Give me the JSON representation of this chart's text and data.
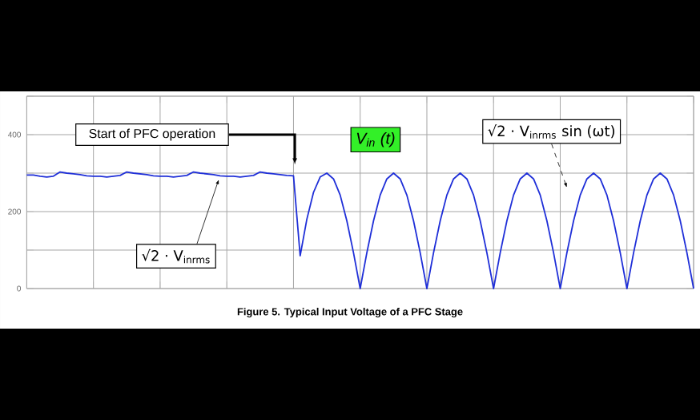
{
  "chart_data": {
    "type": "line",
    "title": "Figure 5. Typical Input Voltage of a PFC Stage",
    "categories": [
      null,
      null,
      null,
      null,
      null,
      null,
      null,
      null,
      null,
      null,
      null,
      null,
      null,
      null,
      null,
      null,
      null,
      null,
      null,
      null,
      null,
      null,
      null,
      null,
      null,
      null,
      null,
      null,
      null,
      null,
      null,
      null,
      null,
      null,
      null,
      null,
      null,
      null,
      null,
      null,
      null,
      null,
      null,
      null,
      null,
      null,
      null,
      null,
      null,
      null,
      null,
      null,
      null,
      null,
      null,
      null,
      null,
      null,
      null,
      null,
      null,
      null,
      null,
      null,
      null,
      null,
      null,
      null,
      null,
      null,
      null,
      null,
      null,
      null,
      null,
      null,
      null,
      null,
      null,
      null,
      null,
      null,
      null,
      null,
      null,
      null,
      null,
      null,
      null,
      null,
      null,
      null,
      null,
      null,
      null,
      null,
      null,
      null,
      null,
      null,
      null
    ],
    "series": [
      {
        "color": "#1f2fd8",
        "values": [
          295,
          295,
          292,
          290,
          292,
          303,
          300,
          298,
          296,
          293,
          292,
          292,
          290,
          292,
          294,
          303,
          300,
          298,
          296,
          293,
          292,
          292,
          290,
          292,
          294,
          303,
          300,
          298,
          296,
          293,
          292,
          292,
          290,
          292,
          294,
          303,
          300,
          298,
          296,
          294,
          293,
          85,
          180,
          250,
          290,
          300,
          285,
          243,
          176,
          93,
          0,
          93,
          176,
          243,
          285,
          300,
          285,
          243,
          176,
          93,
          0,
          93,
          176,
          243,
          285,
          300,
          285,
          243,
          176,
          93,
          0,
          93,
          176,
          243,
          285,
          300,
          285,
          243,
          176,
          93,
          0,
          93,
          176,
          243,
          285,
          300,
          285,
          243,
          176,
          93,
          0,
          93,
          176,
          243,
          285,
          300,
          285,
          243,
          176,
          93,
          0
        ]
      }
    ],
    "ylim": [
      0,
      500
    ],
    "yticks": [
      0,
      {
        "value": 100,
        "label": null
      },
      200,
      {
        "value": 300,
        "label": null
      },
      400,
      {
        "value": 500,
        "label": null
      }
    ],
    "grid": true,
    "tick_labels": "y",
    "annotations": [
      "Start of PFC operation",
      "V$_{in}$ (t)",
      "√2 · V$_{inrms}$",
      "√2 · V$_{inrms}$   sin (ωt)"
    ]
  }
}
